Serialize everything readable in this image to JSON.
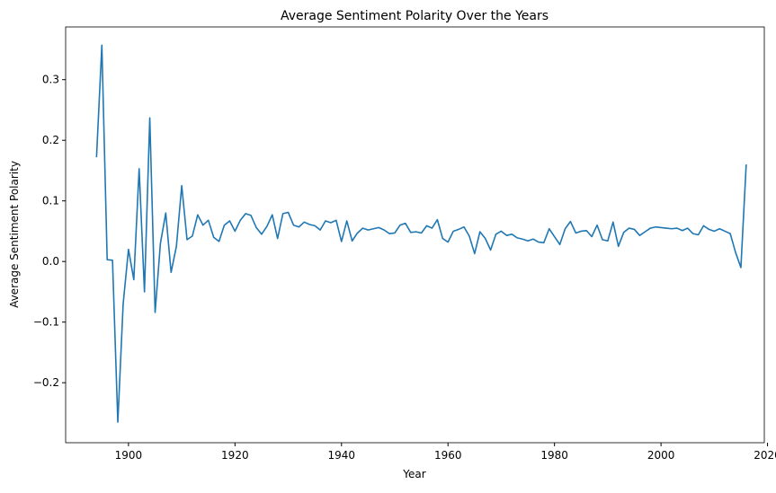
{
  "chart_data": {
    "type": "line",
    "title": "Average Sentiment Polarity Over the Years",
    "x_label": "Year",
    "y_label": "Average Sentiment Polarity",
    "x": [
      1894,
      1895,
      1896,
      1897,
      1898,
      1899,
      1900,
      1901,
      1902,
      1903,
      1904,
      1905,
      1906,
      1907,
      1908,
      1909,
      1910,
      1911,
      1912,
      1913,
      1914,
      1915,
      1916,
      1917,
      1918,
      1919,
      1920,
      1921,
      1922,
      1923,
      1924,
      1925,
      1926,
      1927,
      1928,
      1929,
      1930,
      1931,
      1932,
      1933,
      1934,
      1935,
      1936,
      1937,
      1938,
      1939,
      1940,
      1941,
      1942,
      1943,
      1944,
      1945,
      1946,
      1947,
      1948,
      1949,
      1950,
      1951,
      1952,
      1953,
      1954,
      1955,
      1956,
      1957,
      1958,
      1959,
      1960,
      1961,
      1962,
      1963,
      1964,
      1965,
      1966,
      1967,
      1968,
      1969,
      1970,
      1971,
      1972,
      1973,
      1974,
      1975,
      1976,
      1977,
      1978,
      1979,
      1980,
      1981,
      1982,
      1983,
      1984,
      1985,
      1986,
      1987,
      1988,
      1989,
      1990,
      1991,
      1992,
      1993,
      1994,
      1995,
      1996,
      1997,
      1998,
      1999,
      2000,
      2001,
      2002,
      2003,
      2004,
      2005,
      2006,
      2007,
      2008,
      2009,
      2010,
      2011,
      2012,
      2013,
      2014,
      2015,
      2016
    ],
    "series": [
      {
        "color": "#1f77b4",
        "values": [
          0.172,
          0.357,
          0.003,
          0.002,
          -0.265,
          -0.07,
          0.02,
          -0.03,
          0.153,
          -0.05,
          0.237,
          -0.084,
          0.03,
          0.08,
          -0.018,
          0.025,
          0.125,
          0.036,
          0.042,
          0.077,
          0.06,
          0.068,
          0.04,
          0.033,
          0.06,
          0.067,
          0.05,
          0.068,
          0.079,
          0.076,
          0.056,
          0.045,
          0.058,
          0.077,
          0.038,
          0.079,
          0.081,
          0.06,
          0.057,
          0.065,
          0.061,
          0.059,
          0.052,
          0.067,
          0.064,
          0.068,
          0.033,
          0.067,
          0.034,
          0.047,
          0.055,
          0.052,
          0.054,
          0.056,
          0.052,
          0.046,
          0.047,
          0.06,
          0.063,
          0.048,
          0.049,
          0.047,
          0.059,
          0.055,
          0.069,
          0.038,
          0.032,
          0.05,
          0.053,
          0.057,
          0.042,
          0.013,
          0.049,
          0.038,
          0.019,
          0.045,
          0.05,
          0.043,
          0.045,
          0.039,
          0.037,
          0.034,
          0.037,
          0.032,
          0.031,
          0.054,
          0.041,
          0.028,
          0.054,
          0.066,
          0.047,
          0.05,
          0.051,
          0.041,
          0.06,
          0.036,
          0.034,
          0.065,
          0.025,
          0.048,
          0.055,
          0.053,
          0.043,
          0.049,
          0.055,
          0.057,
          0.056,
          0.055,
          0.054,
          0.055,
          0.051,
          0.055,
          0.046,
          0.044,
          0.059,
          0.053,
          0.05,
          0.054,
          0.05,
          0.046,
          0.015,
          -0.01,
          0.16
        ]
      }
    ],
    "xlim": [
      1888.2,
      2019.4
    ],
    "ylim": [
      -0.299,
      0.387
    ],
    "xticks": [
      1900,
      1920,
      1940,
      1960,
      1980,
      2000,
      2020
    ],
    "yticks": [
      {
        "value": -0.2,
        "label": "−0.2"
      },
      {
        "value": -0.1,
        "label": "−0.1"
      },
      {
        "value": 0,
        "label": "0.0"
      },
      0.1,
      0.2,
      0.3
    ],
    "grid": false
  }
}
